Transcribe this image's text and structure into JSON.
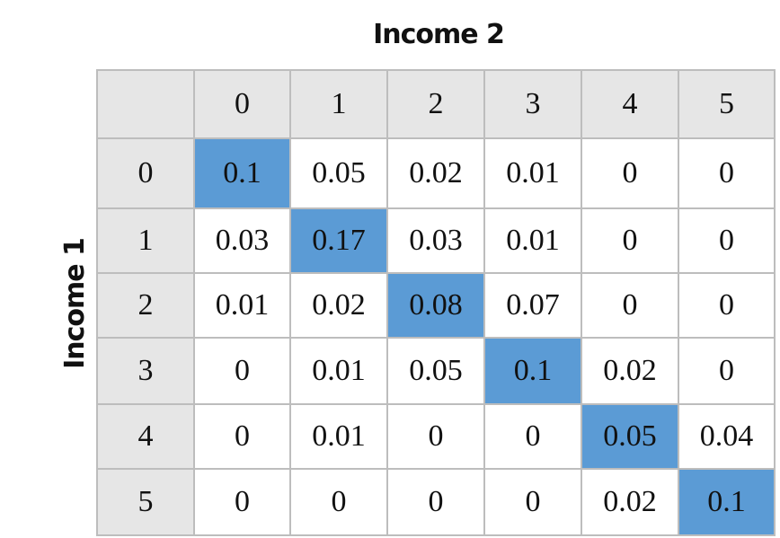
{
  "chart_data": {
    "type": "heatmap",
    "title": "",
    "xlabel": "Income 2",
    "ylabel": "Income 1",
    "x_categories": [
      "0",
      "1",
      "2",
      "3",
      "4",
      "5"
    ],
    "y_categories": [
      "0",
      "1",
      "2",
      "3",
      "4",
      "5"
    ],
    "cells": [
      [
        "0.1",
        "0.05",
        "0.02",
        "0.01",
        "0",
        "0"
      ],
      [
        "0.03",
        "0.17",
        "0.03",
        "0.01",
        "0",
        "0"
      ],
      [
        "0.01",
        "0.02",
        "0.08",
        "0.07",
        "0",
        "0"
      ],
      [
        "0",
        "0.01",
        "0.05",
        "0.1",
        "0.02",
        "0"
      ],
      [
        "0",
        "0.01",
        "0",
        "0",
        "0.05",
        "0.04"
      ],
      [
        "0",
        "0",
        "0",
        "0",
        "0.02",
        "0.1"
      ]
    ],
    "highlight": "diagonal",
    "colors": {
      "highlight": "#5b9bd5",
      "header_bg": "#e6e6e6",
      "cell_bg": "#ffffff",
      "border": "#bdbdbd"
    }
  }
}
